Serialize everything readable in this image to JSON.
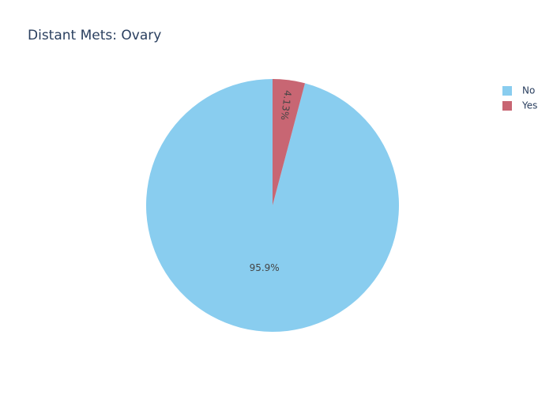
{
  "chart_data": {
    "type": "pie",
    "title": "Distant Mets: Ovary",
    "slices": [
      {
        "label": "No",
        "value": 95.87,
        "display": "95.9%",
        "color": "#89CDEF"
      },
      {
        "label": "Yes",
        "value": 4.13,
        "display": "4.13%",
        "color": "#C86673"
      }
    ],
    "legend_position": "top-right",
    "start_angle": "12 o'clock",
    "direction": "counterclockwise"
  }
}
